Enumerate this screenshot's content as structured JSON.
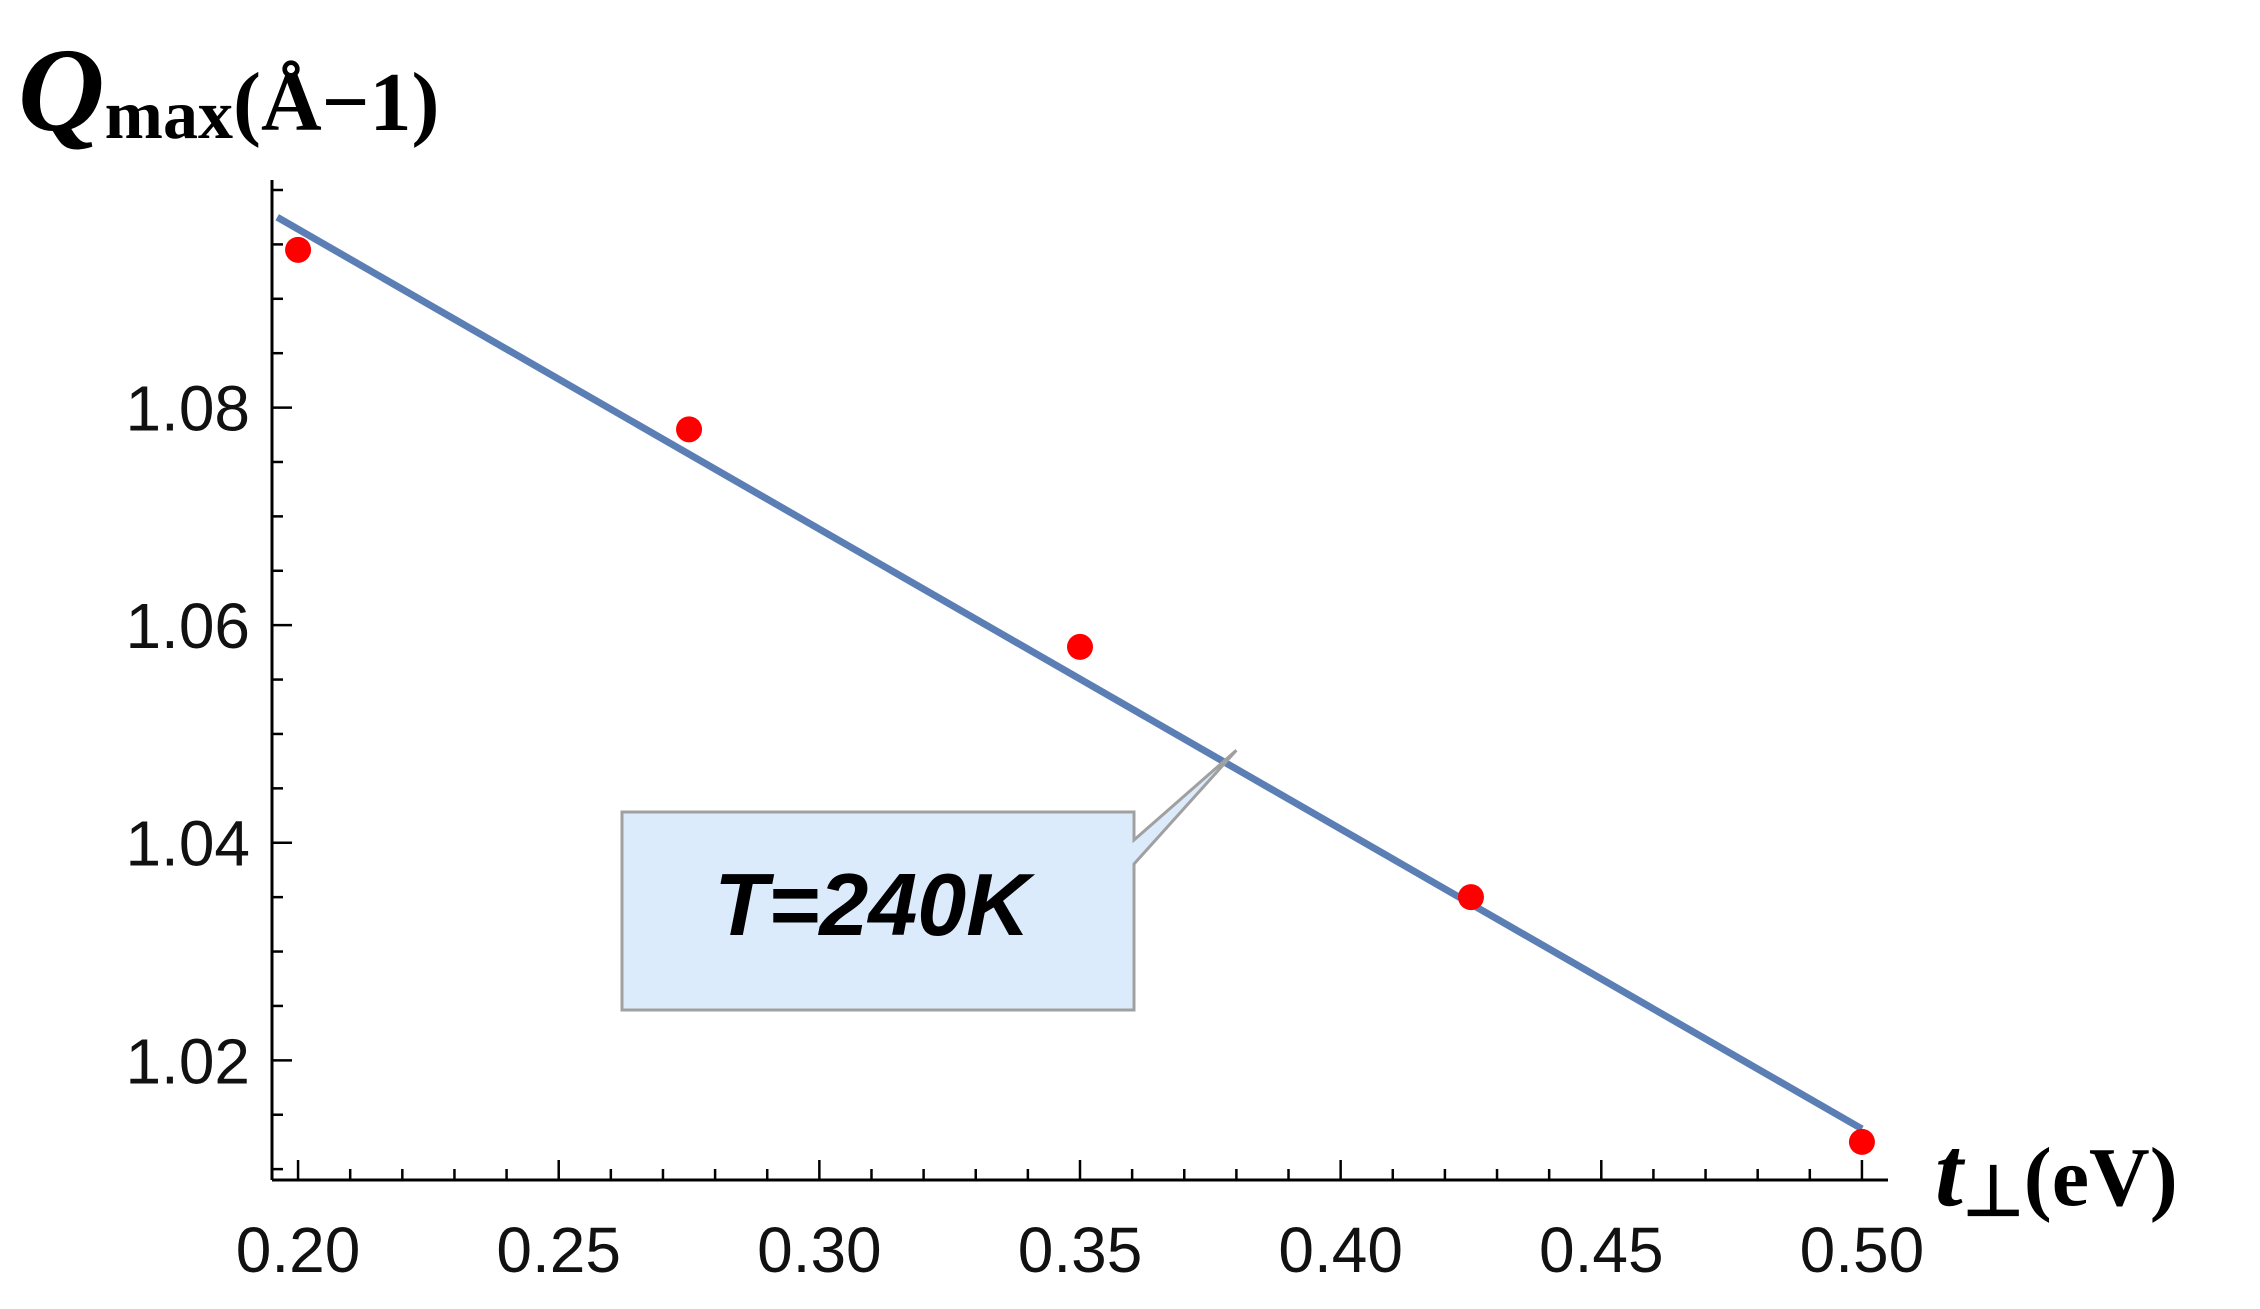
{
  "chart_data": {
    "type": "scatter",
    "title": "",
    "ylabel": {
      "symbol": "Q",
      "sub": "max",
      "unit": "(Å−1)"
    },
    "xlabel": {
      "symbol": "t",
      "sub": "⊥",
      "unit": "(eV)"
    },
    "xlim": [
      0.195,
      0.505
    ],
    "ylim": [
      1.009,
      1.1
    ],
    "x_ticks": [
      "0.20",
      "0.25",
      "0.30",
      "0.35",
      "0.40",
      "0.45",
      "0.50"
    ],
    "y_ticks": [
      "1.02",
      "1.04",
      "1.06",
      "1.08"
    ],
    "series": [
      {
        "kind": "points",
        "color": "#ff0000",
        "points": [
          {
            "x": 0.2,
            "y": 1.0945
          },
          {
            "x": 0.275,
            "y": 1.078
          },
          {
            "x": 0.35,
            "y": 1.058
          },
          {
            "x": 0.425,
            "y": 1.035
          },
          {
            "x": 0.5,
            "y": 1.0125
          }
        ]
      },
      {
        "kind": "fit-line",
        "color": "#5b7fb5",
        "points": [
          {
            "x": 0.196,
            "y": 1.0975
          },
          {
            "x": 0.5,
            "y": 1.0137
          }
        ]
      }
    ],
    "annotation": {
      "text": "T=240K",
      "x": 0.38,
      "y": 1.0485
    },
    "grid": false,
    "legend": "none"
  }
}
